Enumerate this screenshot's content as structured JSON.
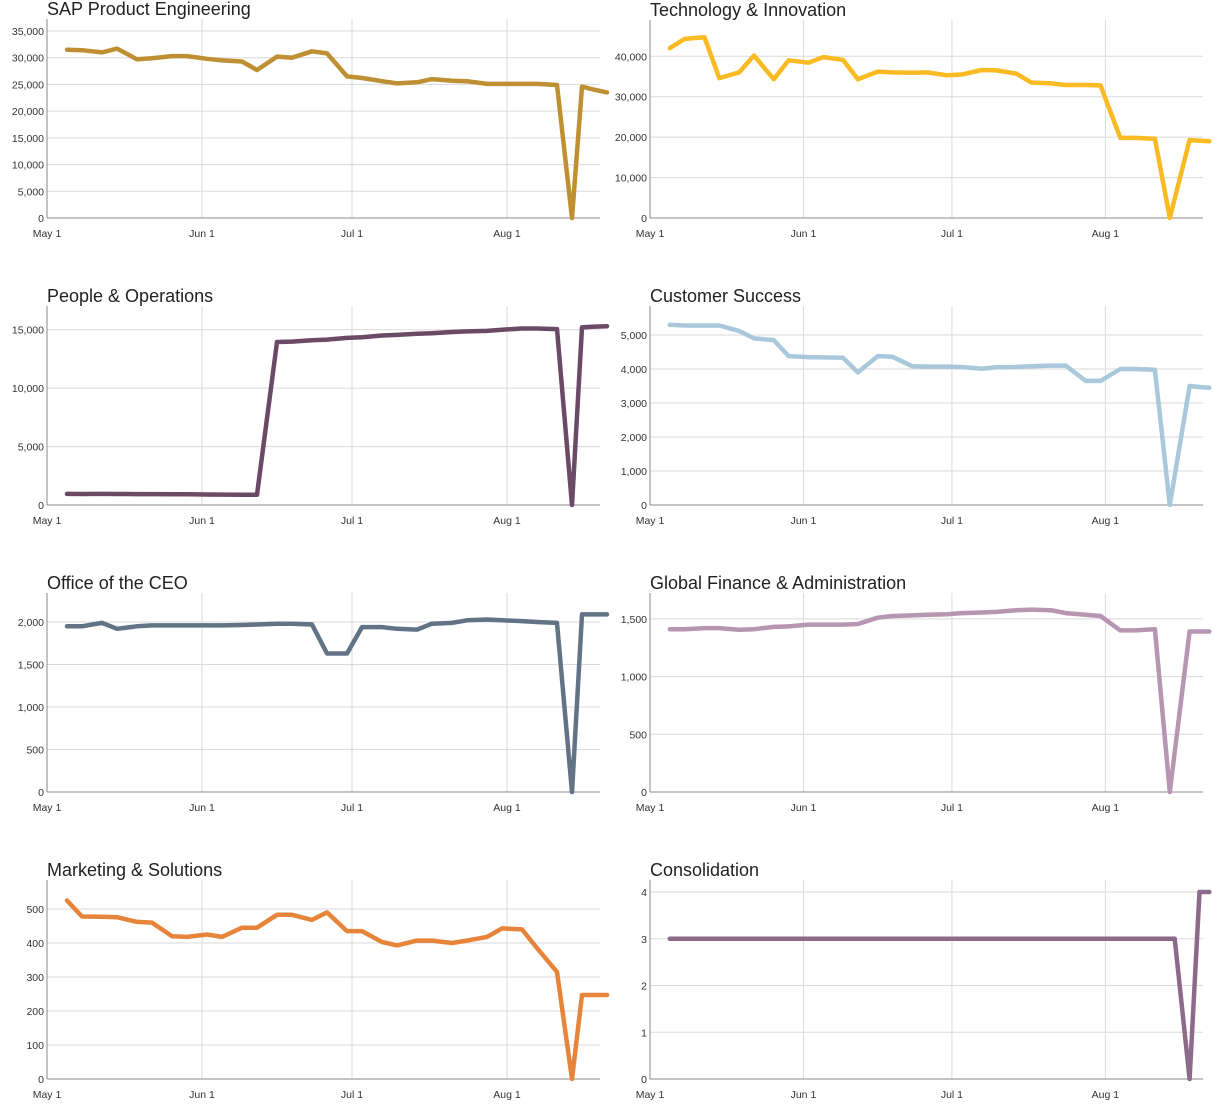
{
  "chart_data": [
    {
      "type": "line",
      "title": "SAP Product Engineering",
      "color": "#bf9033",
      "xticks": [
        "May 1",
        "Jun 1",
        "Jul 1",
        "Aug 1"
      ],
      "x_days": [
        4,
        7,
        11,
        14,
        18,
        21,
        25,
        28,
        32,
        35,
        39,
        42,
        46,
        49,
        53,
        56,
        60,
        63,
        67,
        70,
        74,
        77,
        81,
        84,
        88,
        91,
        95,
        98,
        102,
        105,
        107,
        109,
        112
      ],
      "values": [
        31500,
        31400,
        31000,
        31700,
        29700,
        29900,
        30300,
        30300,
        29800,
        29500,
        29300,
        27700,
        30200,
        30000,
        31200,
        30800,
        26500,
        26200,
        25600,
        25200,
        25400,
        26000,
        25700,
        25600,
        25100,
        25100,
        25100,
        25100,
        24900,
        0,
        24600,
        24100,
        23500
      ],
      "yticks": [
        0,
        5000,
        10000,
        15000,
        20000,
        25000,
        30000,
        35000
      ],
      "ytick_labels": [
        "0",
        "5,000",
        "10,000",
        "15,000",
        "20,000",
        "25,000",
        "30,000",
        "35,000"
      ],
      "ylim": [
        0,
        35000
      ]
    },
    {
      "type": "line",
      "title": "Technology & Innovation",
      "color": "#fabb22",
      "xticks": [
        "May 1",
        "Jun 1",
        "Jul 1",
        "Aug 1"
      ],
      "x_days": [
        4,
        7,
        11,
        14,
        18,
        21,
        25,
        28,
        32,
        35,
        39,
        42,
        46,
        49,
        53,
        56,
        60,
        63,
        67,
        70,
        74,
        77,
        81,
        84,
        88,
        91,
        95,
        98,
        102,
        105,
        109,
        111,
        113
      ],
      "values": [
        42000,
        44300,
        44700,
        34600,
        36000,
        40200,
        34300,
        39000,
        38400,
        39800,
        39100,
        34300,
        36200,
        36000,
        35900,
        36000,
        35300,
        35500,
        36600,
        36500,
        35700,
        33500,
        33300,
        32900,
        32900,
        32800,
        19800,
        19800,
        19600,
        0,
        19300,
        19100,
        19000
      ],
      "yticks": [
        0,
        10000,
        20000,
        30000,
        40000
      ],
      "ytick_labels": [
        "0",
        "10,000",
        "20,000",
        "30,000",
        "40,000"
      ],
      "ylim": [
        0,
        46000
      ]
    },
    {
      "type": "line",
      "title": "People & Operations",
      "color": "#6b4a66",
      "xticks": [
        "May 1",
        "Jun 1",
        "Jul 1",
        "Aug 1"
      ],
      "x_days": [
        4,
        7,
        11,
        14,
        18,
        21,
        25,
        28,
        32,
        35,
        39,
        42,
        46,
        49,
        53,
        56,
        60,
        63,
        67,
        70,
        74,
        77,
        81,
        84,
        88,
        91,
        95,
        98,
        102,
        105,
        107,
        109,
        112
      ],
      "values": [
        950,
        940,
        950,
        940,
        930,
        930,
        920,
        920,
        900,
        890,
        880,
        880,
        13950,
        13980,
        14100,
        14150,
        14300,
        14350,
        14500,
        14550,
        14650,
        14700,
        14800,
        14850,
        14900,
        15000,
        15100,
        15100,
        15050,
        0,
        15200,
        15250,
        15300
      ],
      "yticks": [
        0,
        5000,
        10000,
        15000
      ],
      "ytick_labels": [
        "0",
        "5,000",
        "10,000",
        "15,000"
      ],
      "ylim": [
        0,
        16000
      ]
    },
    {
      "type": "line",
      "title": "Customer Success",
      "color": "#a9c8db",
      "xticks": [
        "May 1",
        "Jun 1",
        "Jul 1",
        "Aug 1"
      ],
      "x_days": [
        4,
        7,
        11,
        14,
        18,
        21,
        25,
        28,
        32,
        35,
        39,
        42,
        46,
        49,
        53,
        56,
        60,
        63,
        67,
        70,
        74,
        77,
        81,
        84,
        88,
        91,
        95,
        98,
        102,
        105,
        109,
        111,
        113
      ],
      "values": [
        5300,
        5280,
        5280,
        5280,
        5120,
        4900,
        4850,
        4380,
        4350,
        4340,
        4330,
        3900,
        4380,
        4360,
        4080,
        4070,
        4070,
        4060,
        4010,
        4050,
        4060,
        4080,
        4100,
        4100,
        3650,
        3650,
        4000,
        4000,
        3980,
        0,
        3500,
        3470,
        3450
      ],
      "yticks": [
        0,
        1000,
        2000,
        3000,
        4000,
        5000
      ],
      "ytick_labels": [
        "0",
        "1,000",
        "2,000",
        "3,000",
        "4,000",
        "5,000"
      ],
      "ylim": [
        0,
        5500
      ]
    },
    {
      "type": "line",
      "title": "Office of the CEO",
      "color": "#627386",
      "xticks": [
        "May 1",
        "Jun 1",
        "Jul 1",
        "Aug 1"
      ],
      "x_days": [
        4,
        7,
        11,
        14,
        18,
        21,
        25,
        28,
        32,
        35,
        39,
        42,
        46,
        49,
        53,
        56,
        60,
        63,
        67,
        70,
        74,
        77,
        81,
        84,
        88,
        91,
        95,
        98,
        102,
        105,
        107,
        109,
        112
      ],
      "values": [
        1950,
        1950,
        1990,
        1920,
        1950,
        1960,
        1960,
        1960,
        1960,
        1960,
        1965,
        1970,
        1980,
        1980,
        1970,
        1630,
        1630,
        1940,
        1940,
        1920,
        1910,
        1980,
        1990,
        2020,
        2030,
        2020,
        2010,
        2000,
        1990,
        0,
        2090,
        2090,
        2090
      ],
      "yticks": [
        0,
        500,
        1000,
        1500,
        2000
      ],
      "ytick_labels": [
        "0",
        "500",
        "1,000",
        "1,500",
        "2,000"
      ],
      "ylim": [
        0,
        2200
      ]
    },
    {
      "type": "line",
      "title": "Global Finance & Administration",
      "color": "#b696b0",
      "xticks": [
        "May 1",
        "Jun 1",
        "Jul 1",
        "Aug 1"
      ],
      "x_days": [
        4,
        7,
        11,
        14,
        18,
        21,
        25,
        28,
        32,
        35,
        39,
        42,
        46,
        49,
        53,
        56,
        60,
        63,
        67,
        70,
        74,
        77,
        81,
        84,
        88,
        91,
        95,
        98,
        102,
        105,
        109,
        111,
        113
      ],
      "values": [
        1410,
        1410,
        1420,
        1420,
        1405,
        1410,
        1430,
        1435,
        1450,
        1450,
        1450,
        1455,
        1510,
        1525,
        1530,
        1535,
        1540,
        1550,
        1555,
        1560,
        1575,
        1580,
        1575,
        1550,
        1535,
        1525,
        1400,
        1400,
        1410,
        0,
        1390,
        1390,
        1390
      ],
      "yticks": [
        0,
        500,
        1000,
        1500
      ],
      "ytick_labels": [
        "0",
        "500",
        "1,000",
        "1,500"
      ],
      "ylim": [
        0,
        1620
      ]
    },
    {
      "type": "line",
      "title": "Marketing & Solutions",
      "color": "#e6843a",
      "xticks": [
        "May 1",
        "Jun 1",
        "Jul 1",
        "Aug 1"
      ],
      "x_days": [
        4,
        7,
        11,
        14,
        18,
        21,
        25,
        28,
        32,
        35,
        39,
        42,
        46,
        49,
        53,
        56,
        60,
        63,
        67,
        70,
        74,
        77,
        81,
        84,
        88,
        91,
        95,
        98,
        102,
        105,
        107,
        109,
        112
      ],
      "values": [
        525,
        478,
        477,
        476,
        462,
        460,
        420,
        418,
        425,
        418,
        445,
        445,
        483,
        483,
        468,
        490,
        435,
        435,
        403,
        393,
        407,
        407,
        400,
        407,
        418,
        443,
        440,
        385,
        315,
        0,
        247,
        247,
        247
      ],
      "yticks": [
        0,
        100,
        200,
        300,
        400,
        500
      ],
      "ytick_labels": [
        "0",
        "100",
        "200",
        "300",
        "400",
        "500"
      ],
      "ylim": [
        0,
        550
      ]
    },
    {
      "type": "line",
      "title": "Consolidation",
      "color": "#8e6a8a",
      "xticks": [
        "May 1",
        "Jun 1",
        "Jul 1",
        "Aug 1"
      ],
      "x_days": [
        4,
        105,
        106,
        109,
        111,
        113
      ],
      "values": [
        3,
        3,
        3,
        0,
        4,
        4
      ],
      "yticks": [
        0,
        1,
        2,
        3,
        4
      ],
      "ytick_labels": [
        "0",
        "1",
        "2",
        "3",
        "4"
      ],
      "ylim": [
        0,
        4
      ]
    }
  ]
}
